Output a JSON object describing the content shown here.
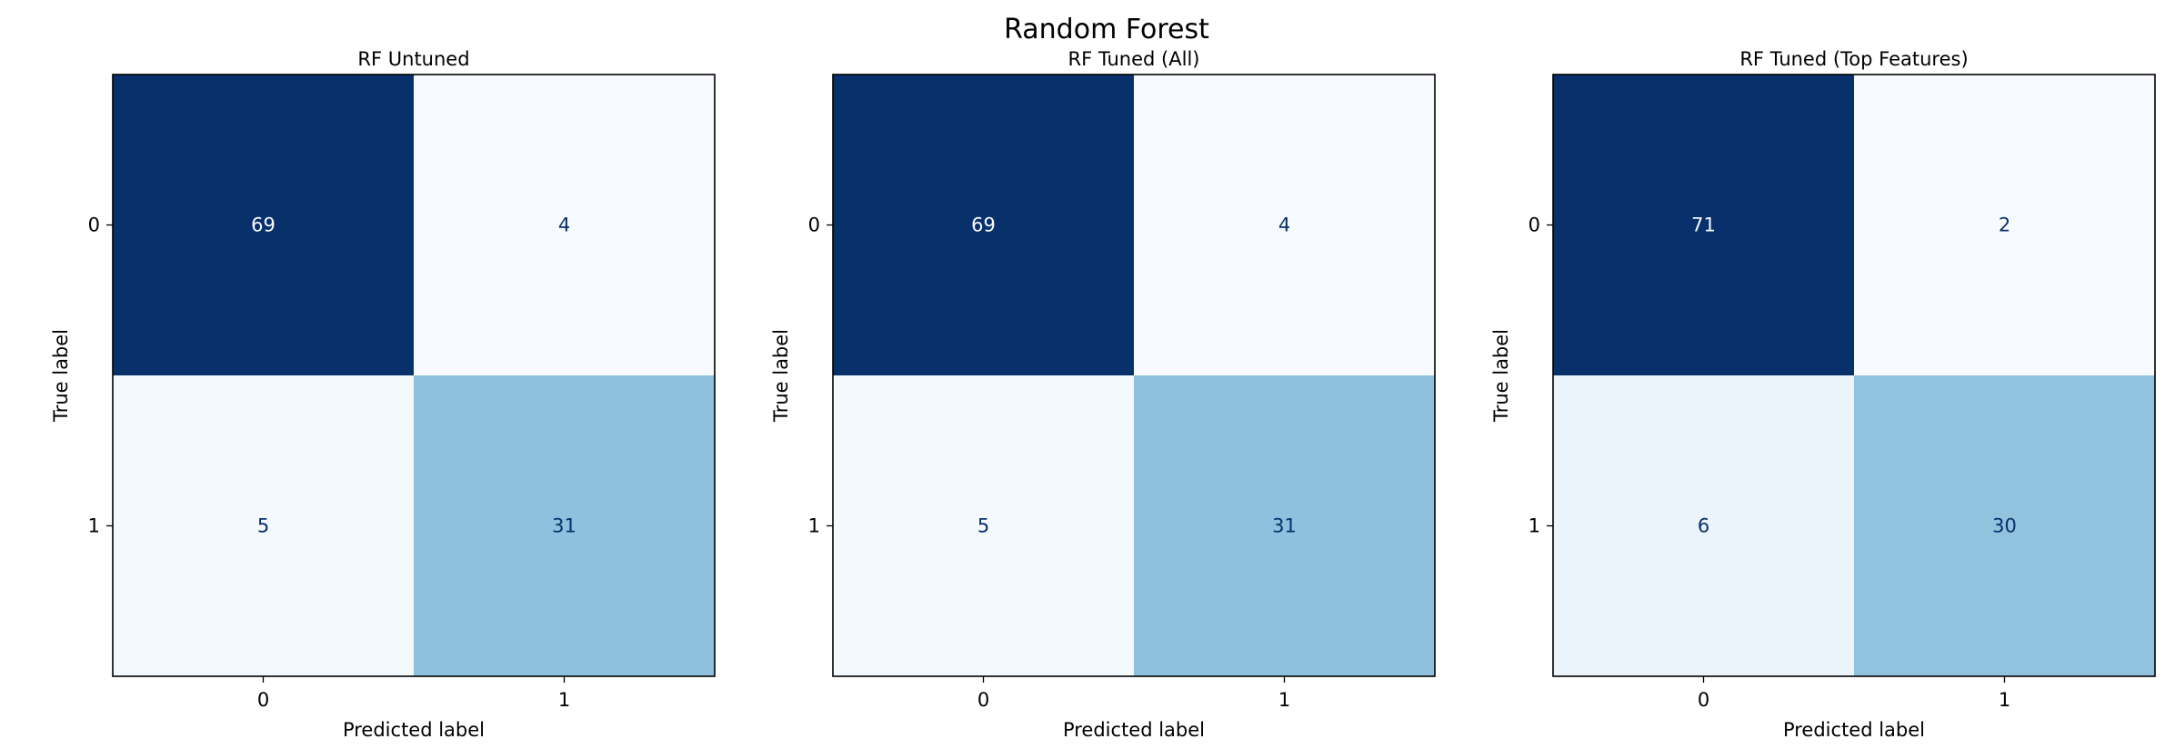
{
  "figure": {
    "suptitle": "Random Forest"
  },
  "chart_data": [
    {
      "type": "heatmap",
      "title": "RF Untuned",
      "xlabel": "Predicted label",
      "ylabel": "True label",
      "x_ticks": [
        "0",
        "1"
      ],
      "y_ticks": [
        "0",
        "1"
      ],
      "matrix": [
        [
          69,
          4
        ],
        [
          5,
          31
        ]
      ],
      "colormap": "Blues",
      "grid": false
    },
    {
      "type": "heatmap",
      "title": "RF Tuned (All)",
      "xlabel": "Predicted label",
      "ylabel": "True label",
      "x_ticks": [
        "0",
        "1"
      ],
      "y_ticks": [
        "0",
        "1"
      ],
      "matrix": [
        [
          69,
          4
        ],
        [
          5,
          31
        ]
      ],
      "colormap": "Blues",
      "grid": false
    },
    {
      "type": "heatmap",
      "title": "RF Tuned (Top Features)",
      "xlabel": "Predicted label",
      "ylabel": "True label",
      "x_ticks": [
        "0",
        "1"
      ],
      "y_ticks": [
        "0",
        "1"
      ],
      "matrix": [
        [
          71,
          2
        ],
        [
          6,
          30
        ]
      ],
      "colormap": "Blues",
      "grid": false
    }
  ],
  "colors": {
    "text_dark_cell": "#f7fbff",
    "text_light_cell": "#08306b",
    "axis": "#000000"
  }
}
